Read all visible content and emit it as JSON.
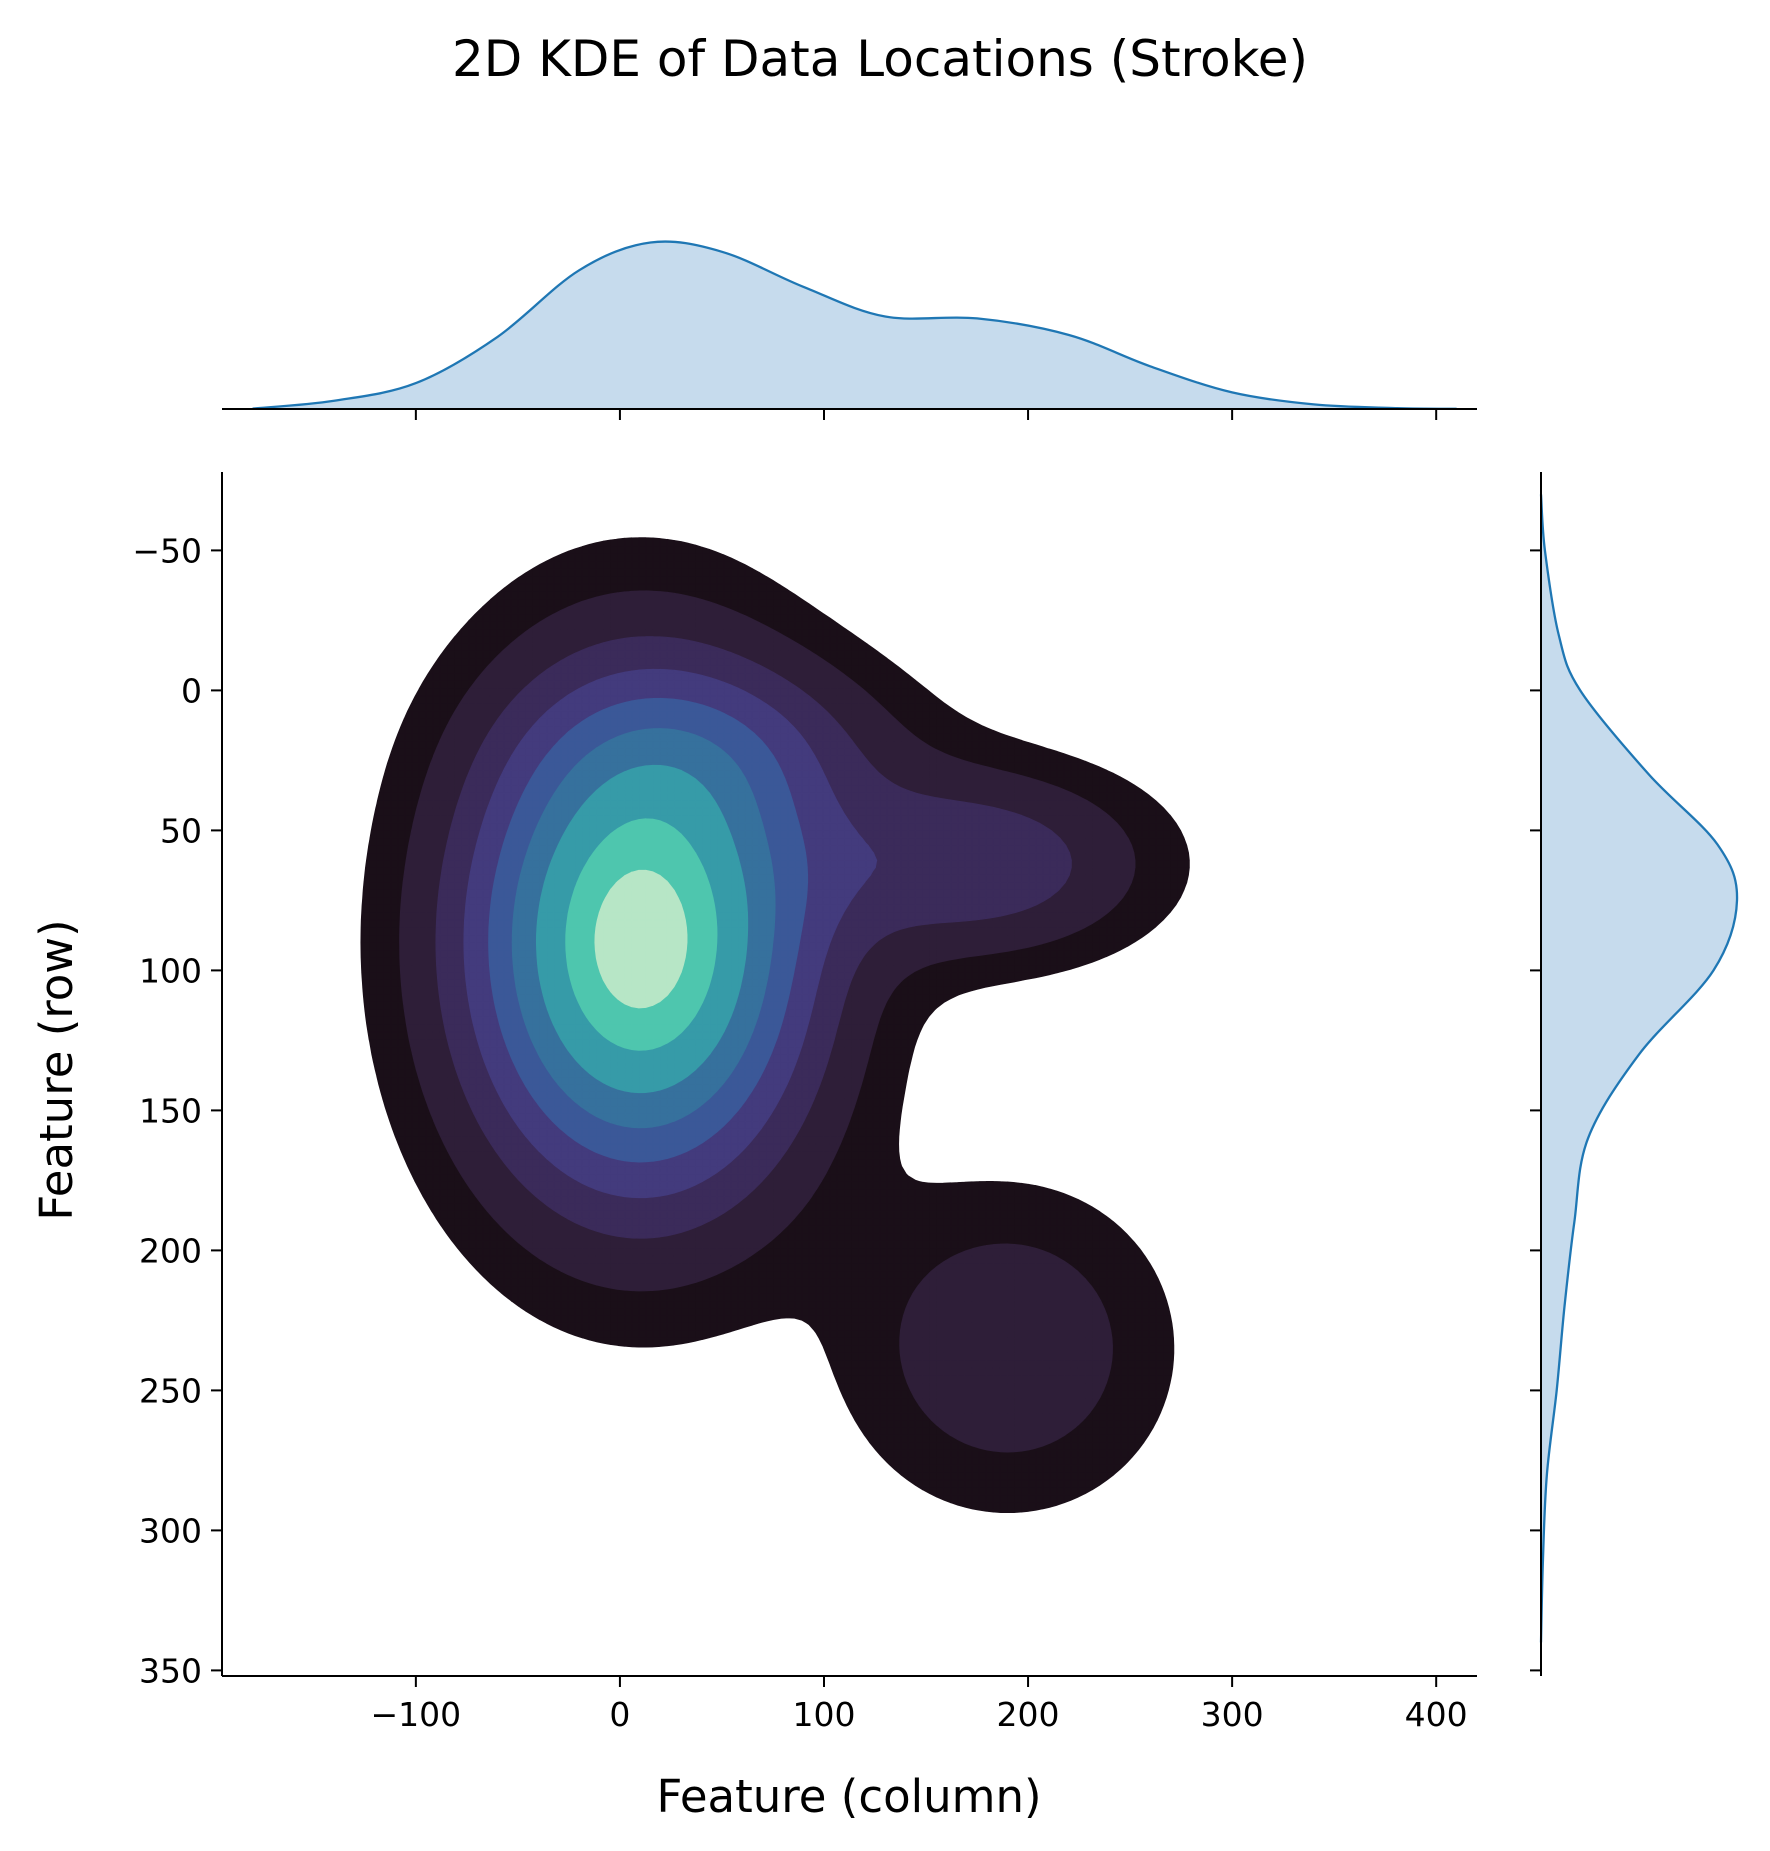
{
  "chart_data": {
    "type": "kde",
    "title": "2D KDE of Data Locations (Stroke)",
    "xlabel": "Feature (column)",
    "ylabel": "Feature (row)",
    "xlim": [
      -195,
      420
    ],
    "ylim": [
      352,
      -78
    ],
    "y_inverted": true,
    "x_ticks": [
      -100,
      0,
      100,
      200,
      300,
      400
    ],
    "x_tick_labels": [
      "−100",
      "0",
      "100",
      "200",
      "300",
      "400"
    ],
    "y_ticks": [
      -50,
      0,
      50,
      100,
      150,
      200,
      250,
      300,
      350
    ],
    "y_tick_labels": [
      "−50",
      "0",
      "50",
      "100",
      "150",
      "200",
      "250",
      "300",
      "350"
    ],
    "grid": false,
    "legend": "none",
    "joint": {
      "fill": true,
      "levels": 7,
      "palette": "mako",
      "fill_colors": [
        "#1a0f18",
        "#2e1e38",
        "#3b2b5a",
        "#433b7d",
        "#3b5898",
        "#36719d",
        "#369ba8",
        "#4ec6ae",
        "#b7e6c6"
      ],
      "components": [
        {
          "mean": [
            10,
            90
          ],
          "sd": [
            55,
            58
          ],
          "weight": 1.0
        },
        {
          "mean": [
            175,
            62
          ],
          "sd": [
            55,
            22
          ],
          "weight": 0.27
        },
        {
          "mean": [
            190,
            235
          ],
          "sd": [
            50,
            36
          ],
          "weight": 0.17
        },
        {
          "mean": [
            60,
            20
          ],
          "sd": [
            60,
            22
          ],
          "weight": 0.14
        }
      ]
    },
    "marginal_x": {
      "x": [
        -180,
        -140,
        -100,
        -60,
        -20,
        15,
        50,
        90,
        130,
        175,
        220,
        260,
        300,
        340,
        380,
        410
      ],
      "density": [
        0.002,
        0.045,
        0.14,
        0.39,
        0.75,
        0.9,
        0.85,
        0.66,
        0.5,
        0.49,
        0.4,
        0.23,
        0.09,
        0.025,
        0.005,
        0.001
      ],
      "color": "#1f77b4",
      "fill": "#c6dbed"
    },
    "marginal_y": {
      "y": [
        -70,
        -50,
        -20,
        0,
        30,
        55,
        75,
        100,
        130,
        160,
        190,
        220,
        250,
        280,
        310,
        340
      ],
      "density": [
        0.0,
        0.02,
        0.09,
        0.2,
        0.55,
        0.9,
        1.0,
        0.88,
        0.5,
        0.24,
        0.17,
        0.12,
        0.08,
        0.03,
        0.01,
        0.0
      ],
      "color": "#1f77b4",
      "fill": "#c6dbed"
    }
  }
}
